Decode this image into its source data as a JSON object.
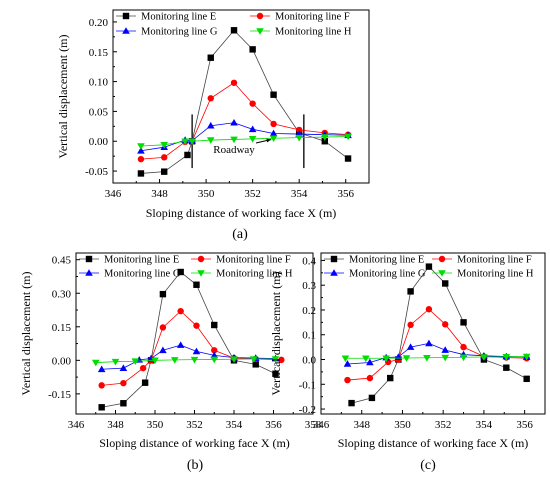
{
  "chart_data": [
    {
      "type": "line",
      "panel": "(a)",
      "xlabel": "Sloping distance of working face X (m)",
      "ylabel": "Vertical displacement (m)",
      "xlim": [
        346,
        357
      ],
      "xticks": [
        346,
        348,
        350,
        352,
        354,
        356
      ],
      "ylim": [
        -0.07,
        0.22
      ],
      "yticks": [
        -0.05,
        0.0,
        0.05,
        0.1,
        0.15,
        0.2
      ],
      "ytick_labels": [
        "-0.05",
        "0.00",
        "0.05",
        "0.10",
        "0.15",
        "0.20"
      ],
      "legend_columns": 2,
      "annotation": {
        "text": "Roadway",
        "x": 351.2,
        "y": -0.013,
        "arrow_to": [
          352.8,
          0.003
        ]
      },
      "vlines": [
        349.4,
        354.2
      ],
      "series": [
        {
          "name": "Monitoring line E",
          "color": "#000000",
          "marker": "square",
          "points": [
            [
              347.2,
              -0.054
            ],
            [
              348.2,
              -0.051
            ],
            [
              349.2,
              -0.023
            ],
            [
              349.4,
              0.0
            ],
            [
              350.2,
              0.14
            ],
            [
              351.2,
              0.186
            ],
            [
              352.0,
              0.154
            ],
            [
              352.9,
              0.078
            ],
            [
              354.0,
              0.014
            ],
            [
              355.1,
              0.0
            ],
            [
              356.1,
              -0.029
            ]
          ]
        },
        {
          "name": "Monitoring line F",
          "color": "#ff0000",
          "marker": "circle",
          "points": [
            [
              347.2,
              -0.03
            ],
            [
              348.2,
              -0.027
            ],
            [
              349.1,
              -0.001
            ],
            [
              349.4,
              0.0
            ],
            [
              350.2,
              0.072
            ],
            [
              351.2,
              0.098
            ],
            [
              352.0,
              0.063
            ],
            [
              352.9,
              0.029
            ],
            [
              354.0,
              0.019
            ],
            [
              355.1,
              0.014
            ],
            [
              356.1,
              0.011
            ]
          ]
        },
        {
          "name": "Monitoring line G",
          "color": "#0000ff",
          "marker": "triangle-up",
          "points": [
            [
              347.2,
              -0.016
            ],
            [
              348.2,
              -0.01
            ],
            [
              349.1,
              0.002
            ],
            [
              349.4,
              0.001
            ],
            [
              350.2,
              0.026
            ],
            [
              351.2,
              0.031
            ],
            [
              352.0,
              0.02
            ],
            [
              352.9,
              0.013
            ],
            [
              354.0,
              0.012
            ],
            [
              355.1,
              0.011
            ],
            [
              356.1,
              0.01
            ]
          ]
        },
        {
          "name": "Monitoring line H",
          "color": "#00dd00",
          "marker": "triangle-down",
          "points": [
            [
              347.2,
              -0.008
            ],
            [
              348.2,
              -0.006
            ],
            [
              349.1,
              0.0
            ],
            [
              349.4,
              0.0
            ],
            [
              350.2,
              0.002
            ],
            [
              351.2,
              0.003
            ],
            [
              352.0,
              0.004
            ],
            [
              352.9,
              0.005
            ],
            [
              354.0,
              0.006
            ],
            [
              355.1,
              0.007
            ],
            [
              356.1,
              0.008
            ]
          ]
        }
      ]
    },
    {
      "type": "line",
      "panel": "(b)",
      "xlabel": "Sloping distance of working face X (m)",
      "ylabel": "Vertical displacement (m)",
      "xlim": [
        346,
        358
      ],
      "xticks": [
        346,
        348,
        350,
        352,
        354,
        356,
        358
      ],
      "ylim": [
        -0.24,
        0.48
      ],
      "yticks": [
        -0.15,
        0.0,
        0.15,
        0.3,
        0.45
      ],
      "ytick_labels": [
        "-0.15",
        "0.00",
        "0.15",
        "0.30",
        "0.45"
      ],
      "legend_columns": 2,
      "series": [
        {
          "name": "Monitoring line E",
          "color": "#000000",
          "marker": "square",
          "points": [
            [
              347.3,
              -0.21
            ],
            [
              348.4,
              -0.192
            ],
            [
              349.5,
              -0.1
            ],
            [
              349.8,
              0.0
            ],
            [
              350.4,
              0.296
            ],
            [
              351.3,
              0.395
            ],
            [
              352.1,
              0.338
            ],
            [
              353.0,
              0.158
            ],
            [
              354.0,
              0.0
            ],
            [
              355.1,
              -0.018
            ],
            [
              356.1,
              -0.06
            ]
          ]
        },
        {
          "name": "Monitoring line F",
          "color": "#ff0000",
          "marker": "circle",
          "points": [
            [
              347.3,
              -0.112
            ],
            [
              348.4,
              -0.102
            ],
            [
              349.4,
              -0.035
            ],
            [
              349.8,
              0.0
            ],
            [
              350.4,
              0.147
            ],
            [
              351.3,
              0.22
            ],
            [
              352.1,
              0.155
            ],
            [
              353.0,
              0.045
            ],
            [
              354.0,
              0.01
            ],
            [
              355.1,
              0.006
            ],
            [
              356.4,
              0.002
            ]
          ]
        },
        {
          "name": "Monitoring line G",
          "color": "#0000ff",
          "marker": "triangle-up",
          "points": [
            [
              347.3,
              -0.04
            ],
            [
              348.4,
              -0.035
            ],
            [
              349.2,
              0.002
            ],
            [
              349.8,
              0.008
            ],
            [
              350.4,
              0.045
            ],
            [
              351.3,
              0.068
            ],
            [
              352.1,
              0.04
            ],
            [
              353.0,
              0.022
            ],
            [
              354.0,
              0.012
            ],
            [
              355.1,
              0.01
            ],
            [
              356.1,
              0.008
            ]
          ]
        },
        {
          "name": "Monitoring line H",
          "color": "#00dd00",
          "marker": "triangle-down",
          "points": [
            [
              347.0,
              -0.01
            ],
            [
              348.0,
              -0.006
            ],
            [
              349.0,
              -0.004
            ],
            [
              350.0,
              0.0
            ],
            [
              351.0,
              0.002
            ],
            [
              352.0,
              0.003
            ],
            [
              353.0,
              0.004
            ],
            [
              354.0,
              0.005
            ],
            [
              355.0,
              0.006
            ],
            [
              356.1,
              0.006
            ]
          ]
        }
      ]
    },
    {
      "type": "line",
      "panel": "(c)",
      "xlabel": "Sloping distance of working face X (m)",
      "ylabel": "Vertical displacement (m)",
      "xlim": [
        346,
        357
      ],
      "xticks": [
        346,
        348,
        350,
        352,
        354,
        356
      ],
      "ylim": [
        -0.22,
        0.43
      ],
      "yticks": [
        -0.2,
        -0.1,
        0.0,
        0.1,
        0.2,
        0.3,
        0.4
      ],
      "ytick_labels": [
        "-0.2",
        "-0.1",
        "0.0",
        "0.1",
        "0.2",
        "0.3",
        "0.4"
      ],
      "legend_columns": 2,
      "series": [
        {
          "name": "Monitoring line E",
          "color": "#000000",
          "marker": "square",
          "points": [
            [
              347.5,
              -0.176
            ],
            [
              348.5,
              -0.155
            ],
            [
              349.4,
              -0.075
            ],
            [
              349.8,
              0.0
            ],
            [
              350.4,
              0.275
            ],
            [
              351.3,
              0.375
            ],
            [
              352.1,
              0.307
            ],
            [
              353.0,
              0.15
            ],
            [
              354.0,
              0.0
            ],
            [
              355.1,
              -0.033
            ],
            [
              356.1,
              -0.078
            ]
          ]
        },
        {
          "name": "Monitoring line F",
          "color": "#ff0000",
          "marker": "circle",
          "points": [
            [
              347.3,
              -0.083
            ],
            [
              348.4,
              -0.075
            ],
            [
              349.3,
              -0.01
            ],
            [
              349.8,
              0.0
            ],
            [
              350.4,
              0.14
            ],
            [
              351.3,
              0.203
            ],
            [
              352.1,
              0.142
            ],
            [
              353.0,
              0.05
            ],
            [
              354.0,
              0.012
            ],
            [
              355.1,
              0.008
            ],
            [
              356.1,
              0.005
            ]
          ]
        },
        {
          "name": "Monitoring line G",
          "color": "#0000ff",
          "marker": "triangle-up",
          "points": [
            [
              347.3,
              -0.018
            ],
            [
              348.4,
              -0.012
            ],
            [
              349.2,
              0.008
            ],
            [
              349.8,
              0.01
            ],
            [
              350.4,
              0.05
            ],
            [
              351.3,
              0.065
            ],
            [
              352.1,
              0.038
            ],
            [
              353.0,
              0.02
            ],
            [
              354.0,
              0.015
            ],
            [
              355.1,
              0.012
            ],
            [
              356.1,
              0.01
            ]
          ]
        },
        {
          "name": "Monitoring line H",
          "color": "#00dd00",
          "marker": "triangle-down",
          "points": [
            [
              347.2,
              0.005
            ],
            [
              348.2,
              0.005
            ],
            [
              349.2,
              0.005
            ],
            [
              350.2,
              0.006
            ],
            [
              351.2,
              0.007
            ],
            [
              352.1,
              0.008
            ],
            [
              353.0,
              0.009
            ],
            [
              354.0,
              0.01
            ],
            [
              355.1,
              0.011
            ],
            [
              356.1,
              0.012
            ]
          ]
        }
      ]
    }
  ]
}
